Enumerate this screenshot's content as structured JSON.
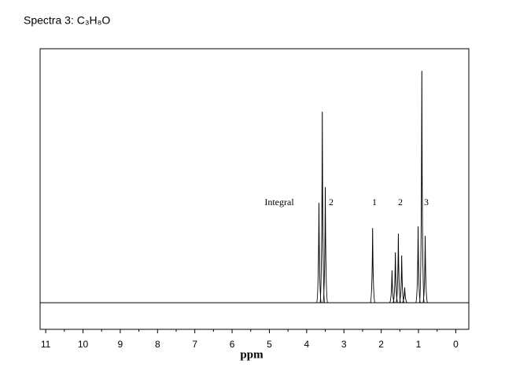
{
  "chart_data": {
    "type": "stem",
    "title": "Spectra 3: C₃H₈O",
    "x_label": "ppm",
    "x": [
      3.67,
      3.58,
      3.5,
      2.23,
      1.71,
      1.62,
      1.54,
      1.45,
      1.37,
      1.01,
      0.91,
      0.82
    ],
    "values": [
      39.3,
      75.2,
      45.5,
      29.4,
      12.7,
      19.8,
      27.2,
      18.6,
      6,
      30,
      91.3,
      26.3
    ],
    "color": "#000000",
    "xlim": [
      11.15,
      -0.35
    ],
    "ylim": [
      -10.5,
      100
    ],
    "xticks": [
      11,
      10,
      9,
      8,
      7,
      6,
      5,
      4,
      3,
      2,
      1,
      0
    ],
    "xminorticks": [
      10.5,
      9.5,
      8.5,
      7.5,
      6.5,
      5.5,
      4.5,
      3.5,
      2.5,
      1.5,
      0.5
    ],
    "annotations": [
      "Integral",
      "2",
      "1",
      "2",
      "3"
    ]
  }
}
